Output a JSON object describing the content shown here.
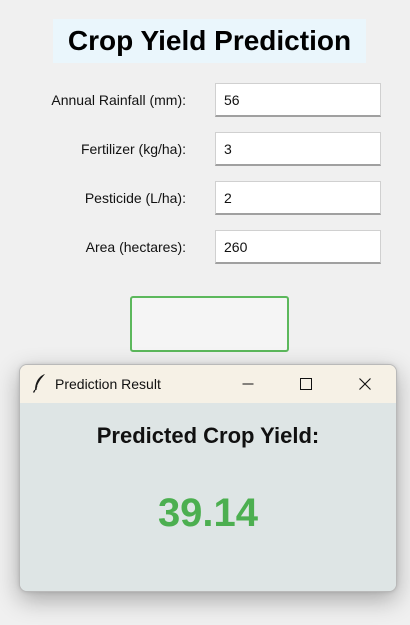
{
  "app": {
    "title": "Crop Yield Prediction"
  },
  "form": {
    "fields": [
      {
        "label": "Annual Rainfall (mm):",
        "value": "56"
      },
      {
        "label": "Fertilizer (kg/ha):",
        "value": "3"
      },
      {
        "label": "Pesticide (L/ha):",
        "value": "2"
      },
      {
        "label": "Area (hectares):",
        "value": "260"
      }
    ],
    "button_color": "#5cb85c"
  },
  "dialog": {
    "window_title": "Prediction Result",
    "heading": "Predicted Crop Yield:",
    "result": "39.14",
    "result_color": "#4caf50",
    "icons": [
      "feather-icon",
      "minimize-icon",
      "maximize-icon",
      "close-icon"
    ]
  }
}
